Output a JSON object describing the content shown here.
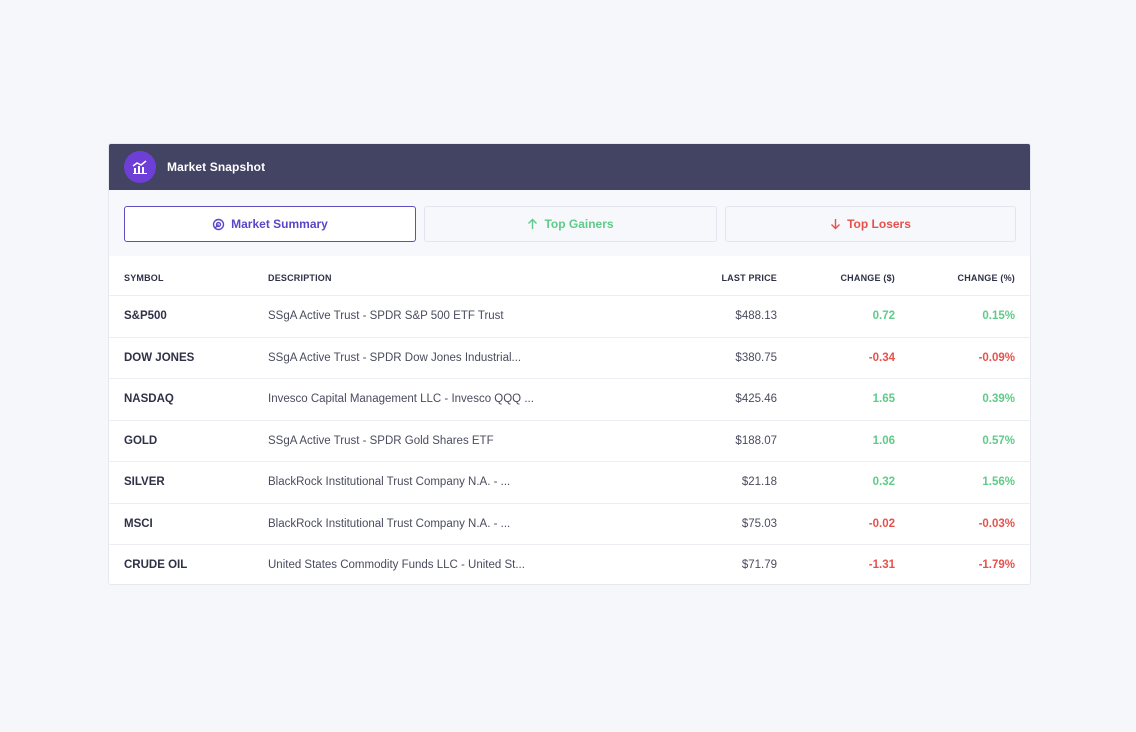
{
  "header": {
    "title": "Market Snapshot",
    "icon": "chart-icon",
    "icon_bg": "#6e3fd6",
    "bg": "#434363"
  },
  "tabs": [
    {
      "label": "Market Summary",
      "icon": "summary-icon",
      "active": true
    },
    {
      "label": "Top Gainers",
      "icon": "arrow-up-icon",
      "active": false
    },
    {
      "label": "Top Losers",
      "icon": "arrow-down-icon",
      "active": false
    }
  ],
  "columns": {
    "symbol": "SYMBOL",
    "description": "DESCRIPTION",
    "last_price": "LAST PRICE",
    "change_usd": "CHANGE ($)",
    "change_pct": "CHANGE (%)"
  },
  "colors": {
    "positive": "#5fcb89",
    "negative": "#e7514c",
    "accent": "#5b46c7"
  },
  "rows": [
    {
      "symbol": "S&P500",
      "description": "SSgA Active Trust - SPDR S&P 500 ETF Trust",
      "price": "$488.13",
      "change": "0.72",
      "pct": "0.15%",
      "trend": "pos"
    },
    {
      "symbol": "DOW JONES",
      "description": "SSgA Active Trust - SPDR Dow Jones Industrial...",
      "price": "$380.75",
      "change": "-0.34",
      "pct": "-0.09%",
      "trend": "neg"
    },
    {
      "symbol": "NASDAQ",
      "description": "Invesco Capital Management LLC - Invesco QQQ ...",
      "price": "$425.46",
      "change": "1.65",
      "pct": "0.39%",
      "trend": "pos"
    },
    {
      "symbol": "GOLD",
      "description": "SSgA Active Trust - SPDR Gold Shares ETF",
      "price": "$188.07",
      "change": "1.06",
      "pct": "0.57%",
      "trend": "pos"
    },
    {
      "symbol": "SILVER",
      "description": "BlackRock Institutional Trust Company N.A. - ...",
      "price": "$21.18",
      "change": "0.32",
      "pct": "1.56%",
      "trend": "pos"
    },
    {
      "symbol": "MSCI",
      "description": "BlackRock Institutional Trust Company N.A. - ...",
      "price": "$75.03",
      "change": "-0.02",
      "pct": "-0.03%",
      "trend": "neg"
    },
    {
      "symbol": "CRUDE OIL",
      "description": "United States Commodity Funds LLC - United St...",
      "price": "$71.79",
      "change": "-1.31",
      "pct": "-1.79%",
      "trend": "neg"
    }
  ]
}
